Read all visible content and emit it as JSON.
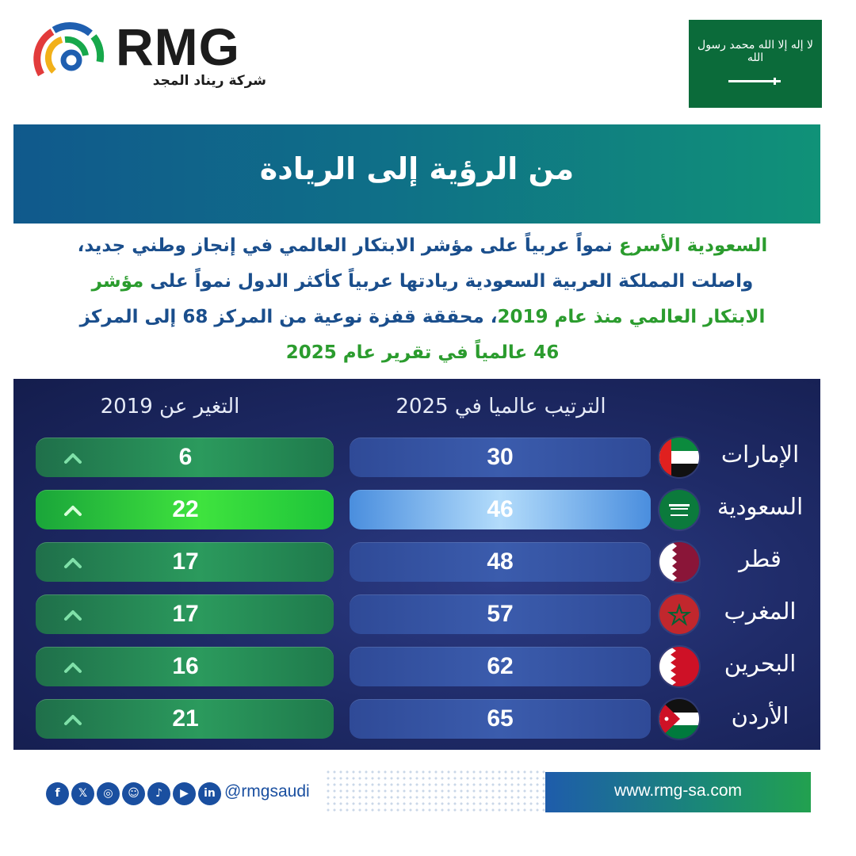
{
  "header": {
    "brand": "RMG",
    "brand_sub": "شركة ريناد المجد",
    "flag_text": "لا إله إلا الله محمد رسول الله"
  },
  "title": "من الرؤية إلى الريادة",
  "paragraph": {
    "l1_green": "السعودية الأسرع",
    "l1_rest": " نمواً عربياً على مؤشر الابتكار العالمي في إنجاز وطني جديد،",
    "l2_rest": "واصلت المملكة العربية السعودية ريادتها عربياً كأكثر الدول نمواً على ",
    "l2_green": "مؤشر",
    "l3_green": "الابتكار العالمي منذ عام 2019",
    "l3_rest": "، محققة قفزة نوعية من المركز 68 إلى المركز",
    "l4_green": "46 عالمياً في تقرير عام 2025"
  },
  "table": {
    "rank_header": "الترتيب عالميا في 2025",
    "change_header": "التغير عن 2019",
    "rows": [
      {
        "country": "الإمارات",
        "rank": "30",
        "change": "6",
        "flag": "uae-flag",
        "highlight": false
      },
      {
        "country": "السعودية",
        "rank": "46",
        "change": "22",
        "flag": "saudi-flag",
        "highlight": true
      },
      {
        "country": "قطر",
        "rank": "48",
        "change": "17",
        "flag": "qatar-flag",
        "highlight": false
      },
      {
        "country": "المغرب",
        "rank": "57",
        "change": "17",
        "flag": "morocco-flag",
        "highlight": false
      },
      {
        "country": "البحرين",
        "rank": "62",
        "change": "16",
        "flag": "bahrain-flag",
        "highlight": false
      },
      {
        "country": "الأردن",
        "rank": "65",
        "change": "21",
        "flag": "jordan-flag",
        "highlight": false
      }
    ]
  },
  "footer": {
    "handle": "@rmgsaudi",
    "url": "www.rmg-sa.com",
    "social_icons": [
      "facebook-icon",
      "x-icon",
      "instagram-icon",
      "snapchat-icon",
      "tiktok-icon",
      "youtube-icon",
      "linkedin-icon"
    ]
  },
  "colors": {
    "brand_blue": "#1a4e8c",
    "brand_green": "#2b9c2e",
    "panel_navy": "#1f2b68",
    "flag_green": "#0b6b3a"
  }
}
